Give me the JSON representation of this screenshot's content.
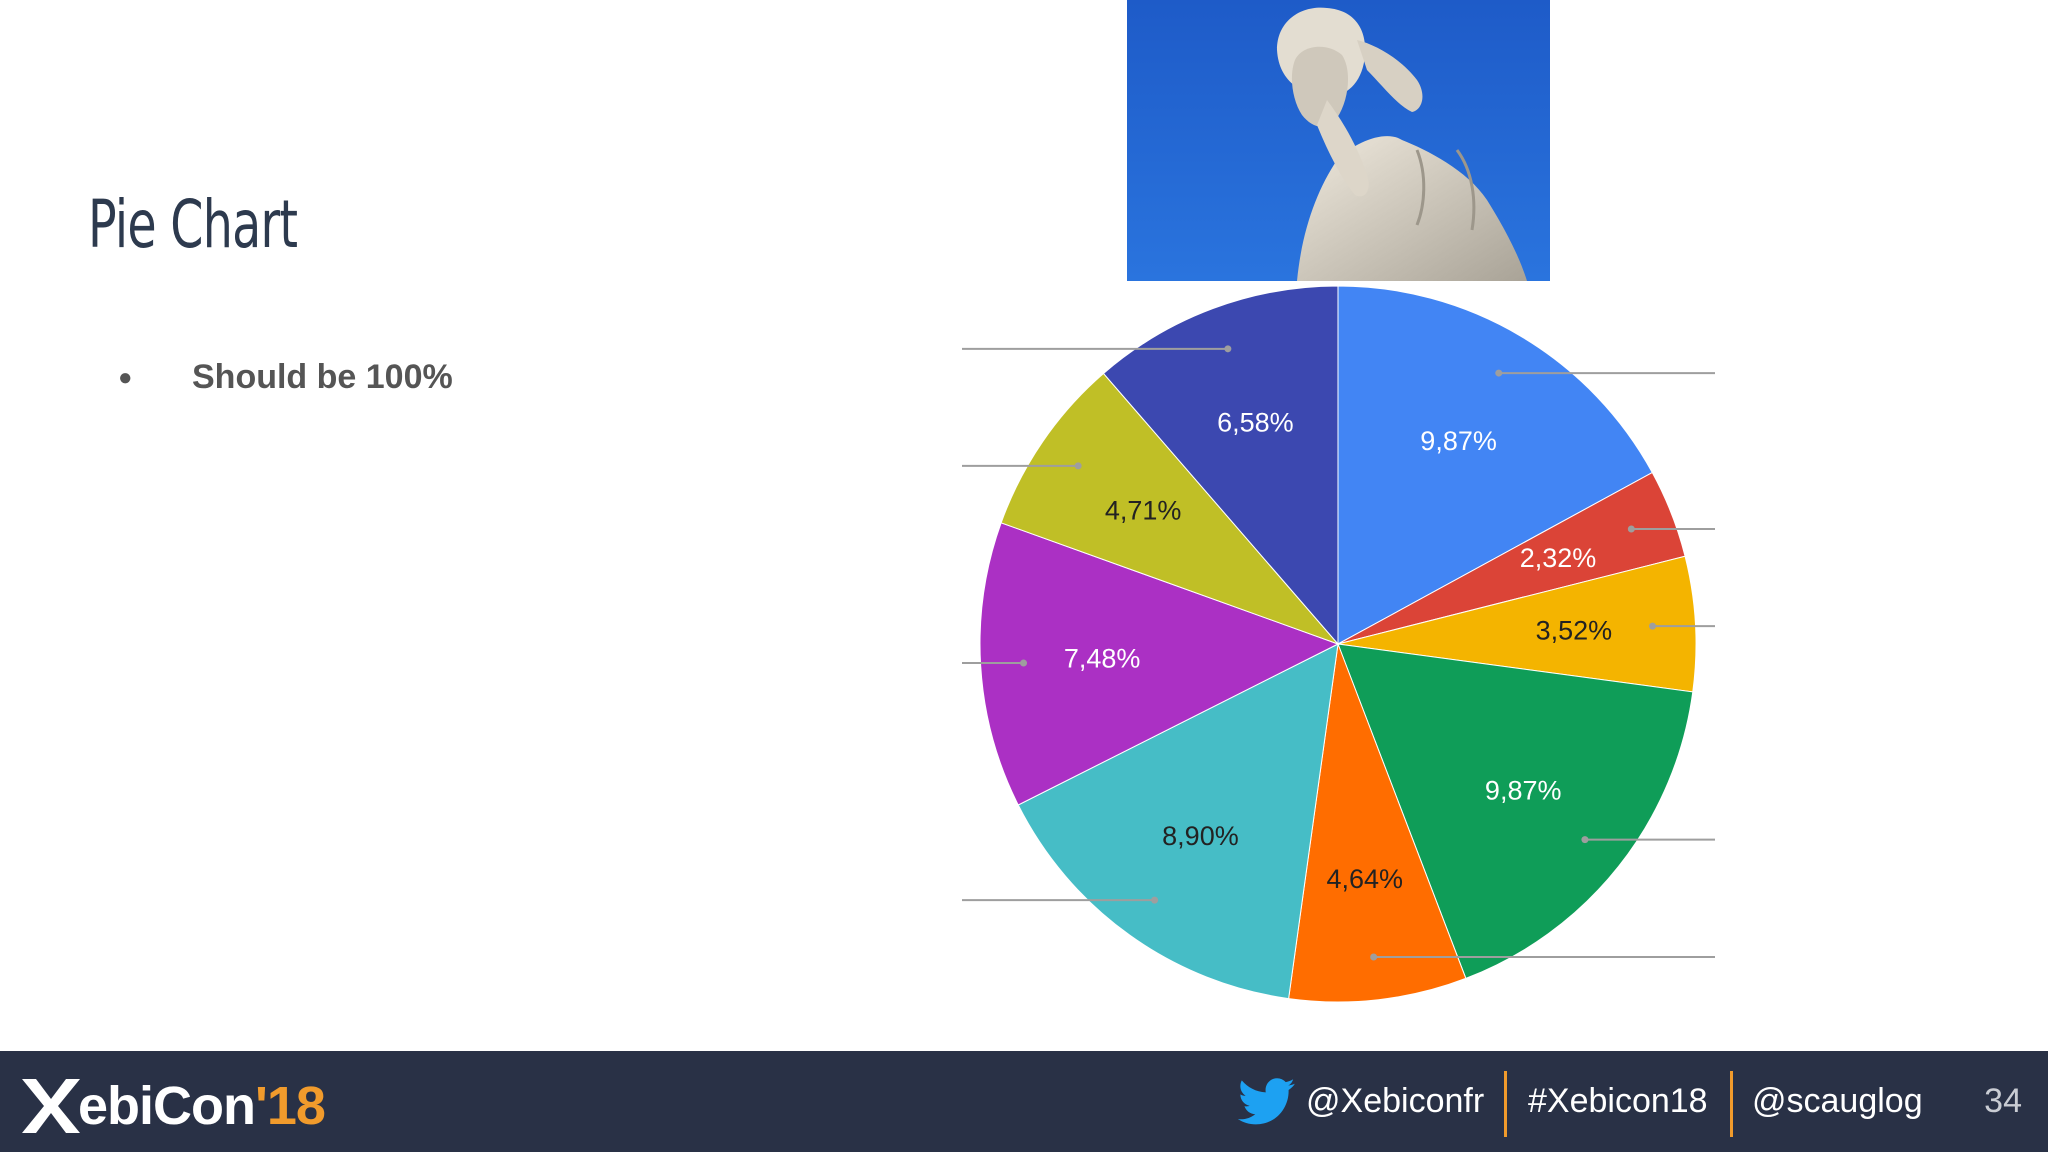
{
  "slide": {
    "title": "Pie Chart",
    "bullet": "Should be 100%"
  },
  "chart_data": {
    "type": "pie",
    "categories": [
      "",
      "",
      "",
      "",
      "",
      "",
      "",
      "",
      ""
    ],
    "values": [
      9.87,
      2.32,
      3.52,
      9.87,
      4.64,
      8.9,
      7.48,
      4.71,
      6.58
    ],
    "value_labels": [
      "9,87%",
      "2,32%",
      "3,52%",
      "9,87%",
      "4,64%",
      "8,90%",
      "7,48%",
      "4,71%",
      "6,58%"
    ],
    "colors": [
      "#4285f4",
      "#db4437",
      "#f4b400",
      "#0f9d58",
      "#ff6d00",
      "#46bdc6",
      "#ab30c4",
      "#c0bf26",
      "#3c48b0"
    ],
    "label_colors": [
      "#ffffff",
      "#ffffff",
      "#222222",
      "#ffffff",
      "#222222",
      "#222222",
      "#ffffff",
      "#222222",
      "#ffffff"
    ],
    "start_angle_deg": 0,
    "direction": "clockwise",
    "legend": "none",
    "leader_lines": true
  },
  "footer": {
    "logo": {
      "x": "X",
      "brand": "ebiCon",
      "year": "'18"
    },
    "twitter_handle": "@Xebiconfr",
    "hashtag": "#Xebicon18",
    "speaker_handle": "@scauglog",
    "page_number": "34"
  },
  "colors": {
    "footer_bg": "#293146",
    "accent": "#f19b2c",
    "twitter": "#1da1f2"
  },
  "icons": {
    "statue": "facepalm-statue-photo",
    "twitter": "twitter-bird-icon"
  }
}
